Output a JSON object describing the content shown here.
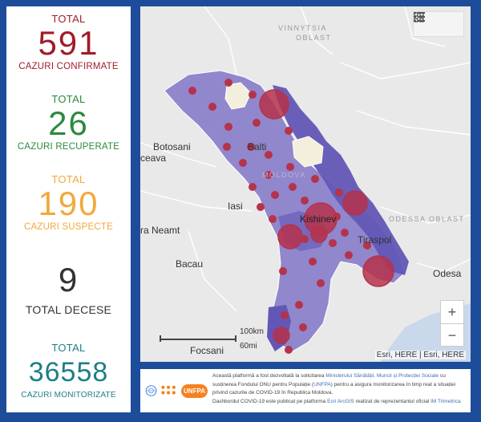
{
  "stats": {
    "confirmed": {
      "top_label": "TOTAL",
      "value": "591",
      "label": "CAZURI CONFIRMATE",
      "color": "#a01c2a"
    },
    "recovered": {
      "top_label": "TOTAL",
      "value": "26",
      "label": "CAZURI RECUPERATE",
      "color": "#2b8a3e"
    },
    "suspected": {
      "top_label": "TOTAL",
      "value": "190",
      "label": "CAZURI SUSPECTE",
      "color": "#f2a93b"
    },
    "deaths": {
      "value": "9",
      "label": "TOTAL DECESE",
      "color": "#333333"
    },
    "monitored": {
      "top_label": "TOTAL",
      "value": "36558",
      "label": "CAZURI MONITORIZATE",
      "color": "#1d7f86"
    }
  },
  "map": {
    "labels": {
      "vinnytsia_line1": "VINNYTSIA",
      "vinnytsia_line2": "OBLAST",
      "odessa": "ODESSA OBLAST",
      "moldova": "MOLDOVA",
      "botosani": "Botosani",
      "ceava": "ceava",
      "balti": "Balti",
      "iasi": "Iasi",
      "neamt": "ra Neamt",
      "kishinev": "Kishinev",
      "tiraspol": "Tiraspol",
      "bacau": "Bacau",
      "odesa": "Odesa",
      "focsani": "Focsani"
    },
    "scale_km": "100km",
    "scale_mi": "60mi",
    "attribution": "Esri, HERE | Esri, HERE",
    "zoom_in": "+",
    "zoom_out": "−",
    "toolbar_icons": [
      "legend-list-icon",
      "basemap-gallery-icon"
    ],
    "colors": {
      "cases_fill": "#b5334b",
      "region_fill": "#8f84c9",
      "region_dark": "#5f52b0",
      "water": "#c9d8ea"
    }
  },
  "footer": {
    "logos": [
      "un-emblem-icon",
      "unfpa-dots-icon",
      "unfpa-logo"
    ],
    "unfpa_text": "UNFPA",
    "t1": "Această platformă a fost dezvoltată la solicitarea ",
    "ministry": "Ministerului Sănătății, Muncii și Protecției Sociale",
    "t2": " cu susținerea Fondului ONU pentru Populație (",
    "unfpa": "UNFPA",
    "t3": ") pentru a asigura monitorizarea în timp real a situației privind cazurile de  COVID-19 în Republica Moldova.",
    "t4": "Dashbordul COVID-19 este publicat pe platforma ",
    "esri": "Esri ArcGIS",
    "t5": " realizat de reprezentantul oficial ",
    "imt": "IM Trimetrica"
  }
}
